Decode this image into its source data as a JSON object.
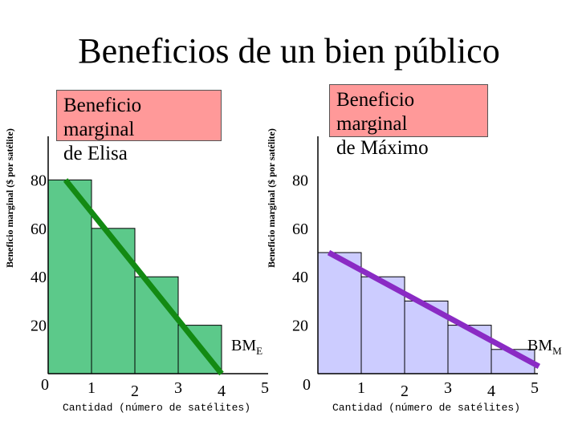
{
  "page": {
    "title": "Beneficios de un bien público"
  },
  "colors": {
    "elisa_fill": "#5cc98a",
    "elisa_line": "#138a13",
    "maximo_fill": "#ccccff",
    "maximo_line": "#8a2bc4",
    "callout": "#ff9999"
  },
  "chart_data": [
    {
      "type": "bar",
      "panel": "left",
      "callout": [
        "Beneficio marginal",
        "de Elisa"
      ],
      "ylabel": "Beneficio marginal ($ por satélite)",
      "xlabel": "Cantidad (número de satélites)",
      "x_ticks": [
        "0",
        "1",
        "2",
        "3",
        "4",
        "5"
      ],
      "y_ticks": [
        "20",
        "40",
        "60",
        "80"
      ],
      "xlim": [
        0,
        5
      ],
      "ylim": [
        0,
        80
      ],
      "categories": [
        1,
        2,
        3,
        4
      ],
      "values": [
        80,
        60,
        40,
        20
      ],
      "line": {
        "label": "BM",
        "subscript": "E",
        "x": [
          0.4,
          4.0
        ],
        "y": [
          80,
          0
        ]
      }
    },
    {
      "type": "bar",
      "panel": "right",
      "callout": [
        "Beneficio marginal",
        "de Máximo"
      ],
      "ylabel": "Beneficio marginal ($ por satélite)",
      "xlabel": "Cantidad (número de satélites)",
      "x_ticks": [
        "0",
        "1",
        "2",
        "3",
        "4",
        "5"
      ],
      "y_ticks": [
        "20",
        "40",
        "60",
        "80"
      ],
      "xlim": [
        0,
        5
      ],
      "ylim": [
        0,
        80
      ],
      "categories": [
        1,
        2,
        3,
        4,
        5
      ],
      "values": [
        50,
        40,
        30,
        20,
        10
      ],
      "line": {
        "label": "BM",
        "subscript": "M",
        "x": [
          0.25,
          5.1
        ],
        "y": [
          50,
          3
        ]
      }
    }
  ]
}
